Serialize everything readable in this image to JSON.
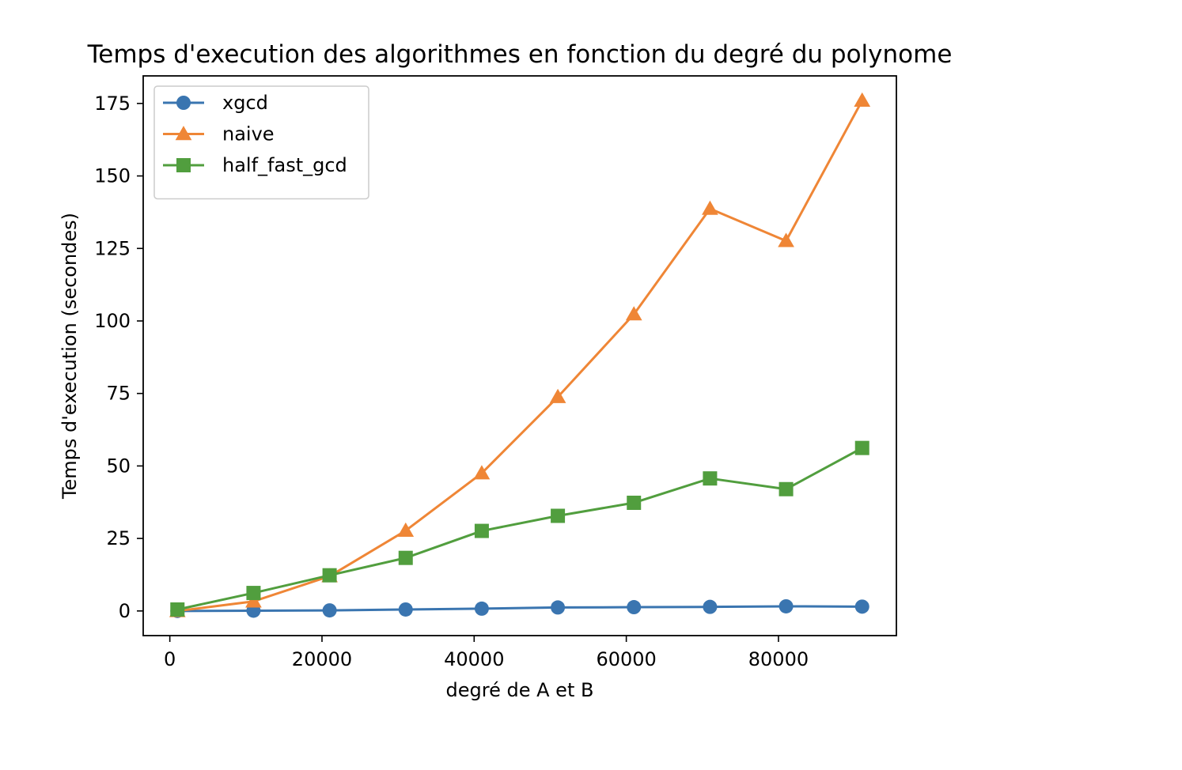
{
  "chart_data": {
    "type": "line",
    "title": "Temps d'execution des algorithmes en fonction du degré du polynome",
    "xlabel": "degré de A et B",
    "ylabel": "Temps d'execution (secondes)",
    "xlim": [
      -3500,
      95500
    ],
    "ylim": [
      -8.5,
      184.5
    ],
    "xticks": [
      0,
      20000,
      40000,
      60000,
      80000
    ],
    "xtick_labels": [
      "0",
      "20000",
      "40000",
      "60000",
      "80000"
    ],
    "yticks": [
      0,
      25,
      50,
      75,
      100,
      125,
      150,
      175
    ],
    "ytick_labels": [
      "0",
      "25",
      "50",
      "75",
      "100",
      "125",
      "150",
      "175"
    ],
    "grid": false,
    "legend_position": "top-left",
    "x": [
      1000,
      11000,
      21000,
      31000,
      41000,
      51000,
      61000,
      71000,
      81000,
      91000
    ],
    "series": [
      {
        "name": "xgcd",
        "marker": "circle",
        "color": "#3a75b0",
        "values": [
          0.0,
          0.1,
          0.2,
          0.5,
          0.8,
          1.2,
          1.3,
          1.4,
          1.6,
          1.5
        ]
      },
      {
        "name": "naive",
        "marker": "triangle",
        "color": "#ef8636",
        "values": [
          0.0,
          3.3,
          12.0,
          27.7,
          47.5,
          73.8,
          102.3,
          138.7,
          127.6,
          176.0
        ]
      },
      {
        "name": "half_fast_gcd",
        "marker": "square",
        "color": "#519e3e",
        "values": [
          0.5,
          6.2,
          12.3,
          18.3,
          27.6,
          32.8,
          37.3,
          45.7,
          42.0,
          56.2
        ]
      }
    ]
  }
}
